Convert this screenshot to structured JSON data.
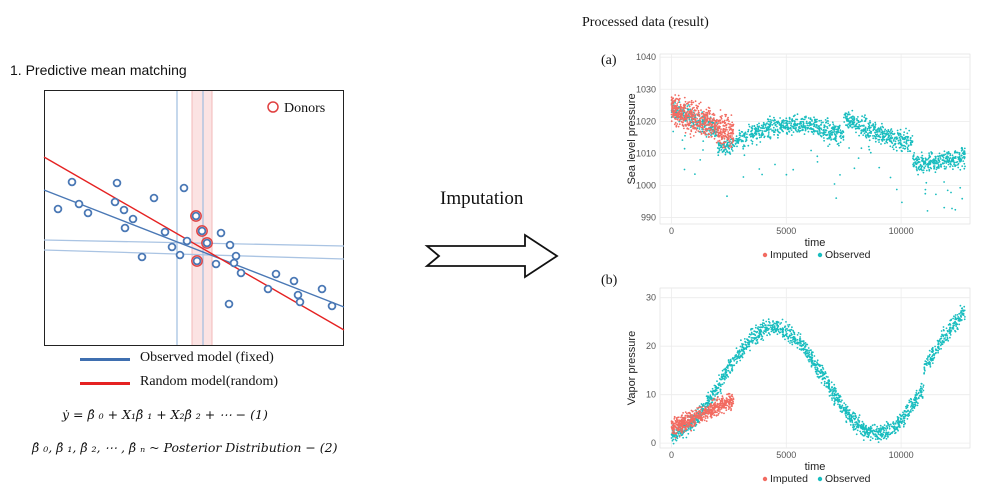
{
  "left": {
    "title": "1. Predictive mean matching",
    "donors_label": "Donors",
    "legend": [
      {
        "label": "Observed model (fixed)",
        "color": "#3f6fb0"
      },
      {
        "label": "Random model(random)",
        "color": "#e52222"
      }
    ],
    "formula1": "ẏ  =  β̂ ₀  + X₁β̂ ₁ + X₂β̂ ₂  +  ⋯  − (1)",
    "formula2": "β̂ ₀, β̂ ₁, β̂ ₂, ⋯ , β̂ ₙ ~ Posterior Distribution − (2)"
  },
  "middle": {
    "label": "Imputation"
  },
  "right": {
    "title": "Processed data (result)",
    "panel_a_label": "(a)",
    "panel_b_label": "(b)",
    "colors": {
      "imputed": "#f26b61",
      "observed": "#19bdbf"
    },
    "chart_data": [
      {
        "type": "scatter",
        "xlabel": "time",
        "ylabel": "Sea level pressure",
        "x_ticks": [
          0,
          5000,
          10000
        ],
        "y_ticks": [
          990,
          1000,
          1010,
          1020,
          1030,
          1040
        ],
        "xlim": [
          -500,
          13000
        ],
        "ylim": [
          988,
          1041
        ],
        "series": [
          {
            "name": "Imputed",
            "x_range": [
              0,
              2700
            ],
            "y_center": 1019,
            "y_spread": 10
          },
          {
            "name": "Observed",
            "x_range": [
              0,
              12800
            ],
            "y_center": 1015,
            "y_spread": 8
          }
        ],
        "legend": [
          "Imputed",
          "Observed"
        ]
      },
      {
        "type": "scatter",
        "xlabel": "time",
        "ylabel": "Vapor pressure",
        "x_ticks": [
          0,
          5000,
          10000
        ],
        "y_ticks": [
          0,
          10,
          20,
          30
        ],
        "xlim": [
          -500,
          13000
        ],
        "ylim": [
          -1,
          32
        ],
        "series": [
          {
            "name": "Imputed",
            "x_range": [
              0,
              2700
            ],
            "y_center": 5,
            "y_spread": 4
          },
          {
            "name": "Observed",
            "x_range": [
              0,
              12800
            ],
            "y_center": 12,
            "y_spread": 5
          }
        ],
        "legend": [
          "Imputed",
          "Observed"
        ]
      }
    ]
  }
}
